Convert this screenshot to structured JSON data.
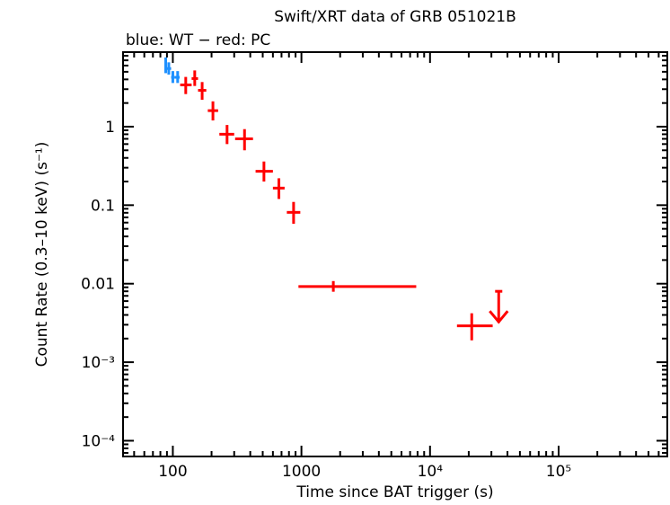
{
  "chart_data": {
    "type": "scatter",
    "title": "Swift/XRT data of GRB 051021B",
    "subtitle": "blue: WT − red: PC",
    "xlabel": "Time since BAT trigger (s)",
    "ylabel": "Count Rate (0.3–10 keV) (s⁻¹)",
    "xscale": "log",
    "yscale": "log",
    "xlim": [
      41,
      700000
    ],
    "ylim": [
      6.3e-05,
      8.9
    ],
    "grid": false,
    "x_ticks": [
      {
        "v": 100,
        "label": "100"
      },
      {
        "v": 1000,
        "label": "1000"
      },
      {
        "v": 10000,
        "label": "10⁴"
      },
      {
        "v": 100000,
        "label": "10⁵"
      }
    ],
    "y_ticks": [
      {
        "v": 1,
        "label": "1"
      },
      {
        "v": 0.1,
        "label": "0.1"
      },
      {
        "v": 0.01,
        "label": "0.01"
      },
      {
        "v": 0.001,
        "label": "10⁻³"
      },
      {
        "v": 0.0001,
        "label": "10⁻⁴"
      }
    ],
    "series": [
      {
        "mode": "WT",
        "color": "#1e90ff",
        "points": [
          {
            "x": 88,
            "y": 6.2,
            "xlo": 86,
            "xhi": 90,
            "ylo": 4.8,
            "yhi": 7.6
          },
          {
            "x": 93,
            "y": 5.5,
            "xlo": 90,
            "xhi": 97,
            "ylo": 4.6,
            "yhi": 6.6
          },
          {
            "x": 100,
            "y": 4.25,
            "xlo": 97,
            "xhi": 104,
            "ylo": 3.6,
            "yhi": 5.1
          },
          {
            "x": 109,
            "y": 4.25,
            "xlo": 104,
            "xhi": 113,
            "ylo": 3.6,
            "yhi": 5.1
          }
        ]
      },
      {
        "mode": "PC",
        "color": "#ff0000",
        "points": [
          {
            "x": 126,
            "y": 3.4,
            "xlo": 114,
            "xhi": 140,
            "ylo": 2.6,
            "yhi": 4.3
          },
          {
            "x": 148,
            "y": 4.1,
            "xlo": 140,
            "xhi": 157,
            "ylo": 3.3,
            "yhi": 5.2
          },
          {
            "x": 169,
            "y": 2.9,
            "xlo": 157,
            "xhi": 182,
            "ylo": 2.2,
            "yhi": 3.7
          },
          {
            "x": 205,
            "y": 1.6,
            "xlo": 187,
            "xhi": 225,
            "ylo": 1.2,
            "yhi": 2.1
          },
          {
            "x": 264,
            "y": 0.8,
            "xlo": 230,
            "xhi": 300,
            "ylo": 0.6,
            "yhi": 1.05
          },
          {
            "x": 361,
            "y": 0.7,
            "xlo": 305,
            "xhi": 420,
            "ylo": 0.5,
            "yhi": 0.93
          },
          {
            "x": 511,
            "y": 0.27,
            "xlo": 440,
            "xhi": 600,
            "ylo": 0.2,
            "yhi": 0.36
          },
          {
            "x": 668,
            "y": 0.165,
            "xlo": 600,
            "xhi": 740,
            "ylo": 0.12,
            "yhi": 0.22
          },
          {
            "x": 869,
            "y": 0.081,
            "xlo": 770,
            "xhi": 980,
            "ylo": 0.058,
            "yhi": 0.11
          },
          {
            "x": 1770,
            "y": 0.0092,
            "xlo": 948,
            "xhi": 7810,
            "ylo": 0.0079,
            "yhi": 0.0108
          },
          {
            "x": 21100,
            "y": 0.0029,
            "xlo": 16200,
            "xhi": 30700,
            "ylo": 0.0019,
            "yhi": 0.0042
          }
        ]
      }
    ],
    "upper_limits": [
      {
        "x": 34200,
        "y": 0.008,
        "color": "#ff0000"
      }
    ]
  }
}
